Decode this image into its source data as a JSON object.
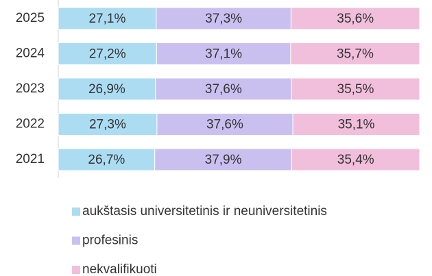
{
  "chart_data": {
    "type": "stacked-barh",
    "categories": [
      "2025",
      "2024",
      "2023",
      "2022",
      "2021"
    ],
    "series": [
      {
        "name": "aukštasis universitetinis ir neuniversitetinis",
        "color": "#acdcf2",
        "values": [
          27.1,
          27.2,
          26.9,
          27.3,
          26.7
        ],
        "value_labels": [
          "27,1%",
          "27,2%",
          "26,9%",
          "27,3%",
          "26,7%"
        ]
      },
      {
        "name": "profesinis",
        "color": "#cac0f0",
        "values": [
          37.3,
          37.1,
          37.6,
          37.6,
          37.9
        ],
        "value_labels": [
          "37,3%",
          "37,1%",
          "37,6%",
          "37,6%",
          "37,9%"
        ]
      },
      {
        "name": "nekvalifikuoti",
        "color": "#f1bfdb",
        "values": [
          35.6,
          35.7,
          35.5,
          35.1,
          35.4
        ],
        "value_labels": [
          "35,6%",
          "35,7%",
          "35,5%",
          "35,1%",
          "35,4%"
        ]
      }
    ]
  }
}
